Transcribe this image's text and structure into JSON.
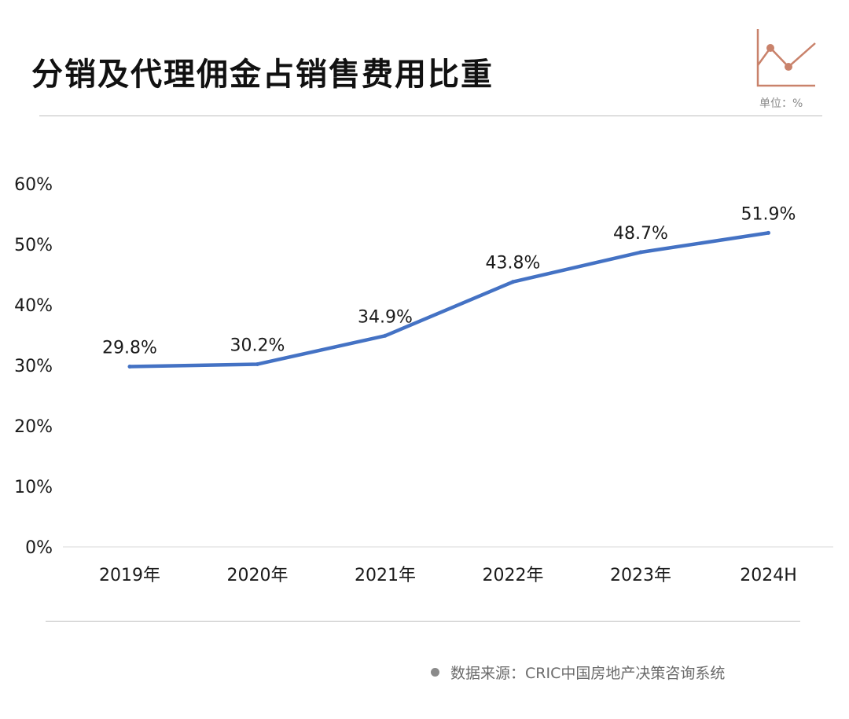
{
  "title": "分销及代理佣金占销售费用比重",
  "unit_text": "单位：%",
  "source": "数据来源：CRIC中国房地产决策咨询系统",
  "colors": {
    "line": "#4472c4",
    "accent": "#c9826b",
    "grid": "#d9d9d9",
    "text": "#1a1a1a"
  },
  "icons": {
    "logo": "line-chart-icon"
  },
  "chart_data": {
    "type": "line",
    "title": "分销及代理佣金占销售费用比重",
    "categories": [
      "2019年",
      "2020年",
      "2021年",
      "2022年",
      "2023年",
      "2024H"
    ],
    "series": [
      {
        "values": [
          29.8,
          30.2,
          34.9,
          43.8,
          48.7,
          51.9
        ]
      }
    ],
    "data_labels": [
      "29.8%",
      "30.2%",
      "34.9%",
      "43.8%",
      "48.7%",
      "51.9%"
    ],
    "y_ticks": [
      "0%",
      "10%",
      "20%",
      "30%",
      "40%",
      "50%",
      "60%"
    ],
    "y_tick_values": [
      0,
      10,
      20,
      30,
      40,
      50,
      60
    ],
    "ylim": [
      0,
      60
    ],
    "xlabel": "",
    "ylabel": "",
    "grid": false,
    "legend": "none"
  }
}
